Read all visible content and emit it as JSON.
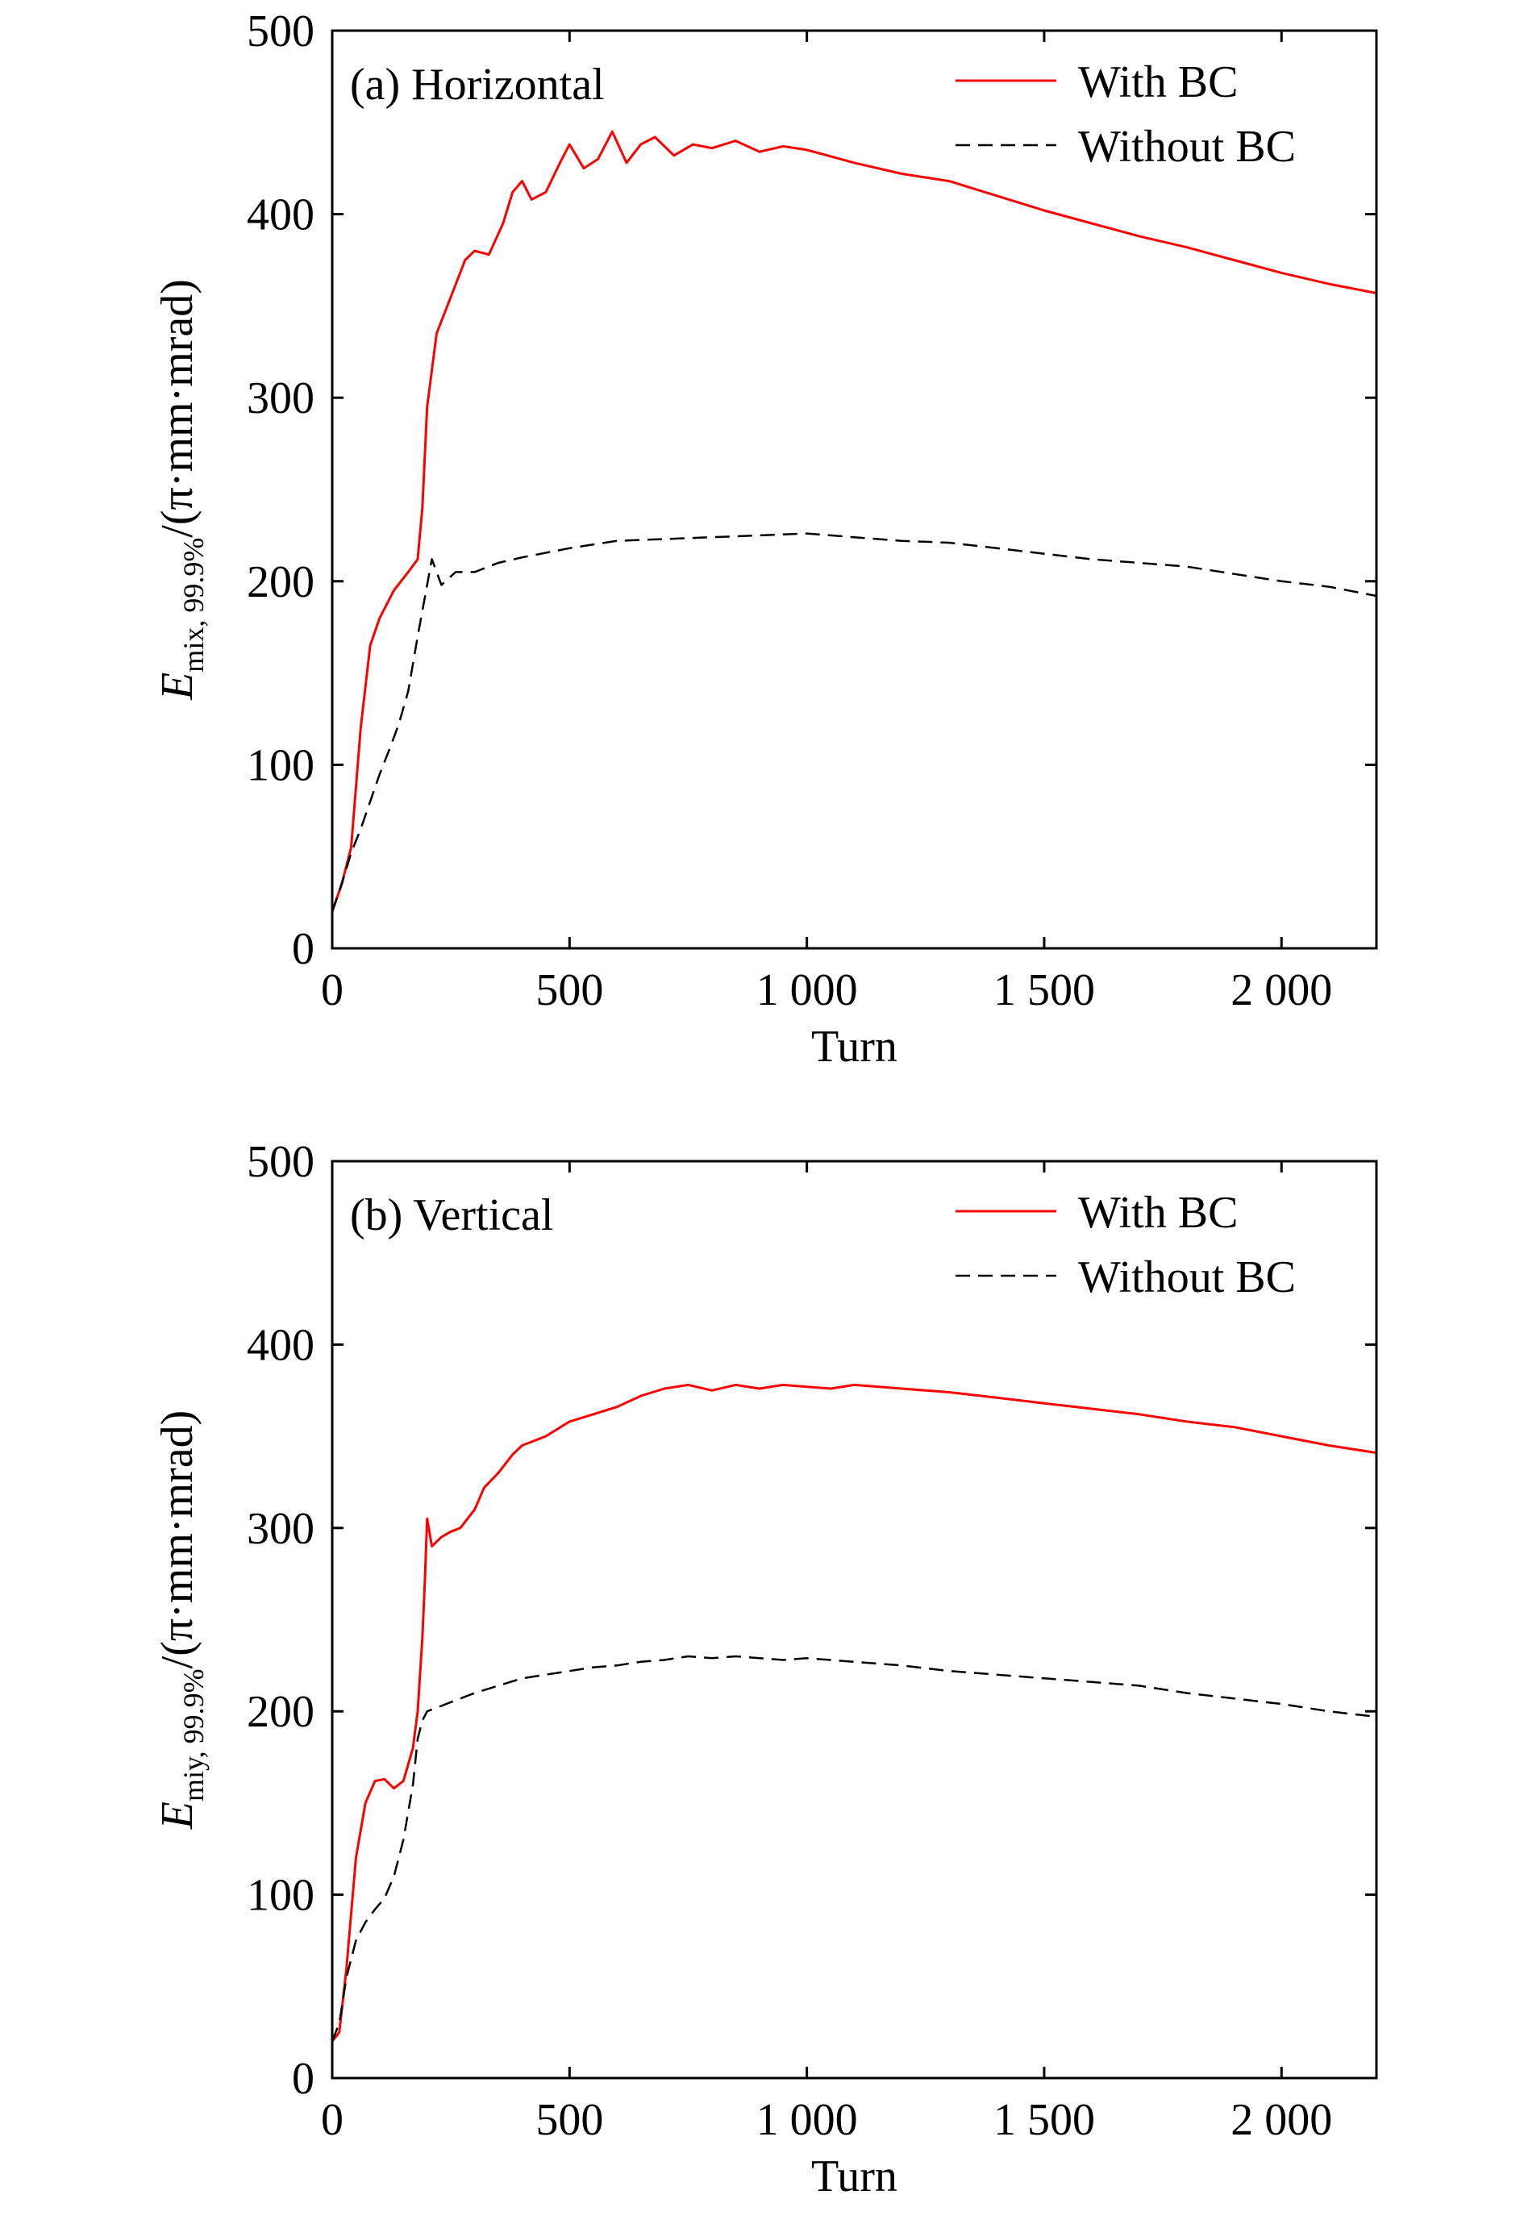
{
  "chart_data": [
    {
      "type": "line",
      "annotation": "(a) Horizontal",
      "xlabel": "Turn",
      "ylabel": {
        "symbol": "E",
        "subscript": "mix, 99.9%",
        "unit": "/(π·mm·mrad)"
      },
      "xlim": [
        0,
        2200
      ],
      "ylim": [
        0,
        500
      ],
      "x_ticks": [
        0,
        500,
        1000,
        1500,
        2000
      ],
      "x_tick_labels": [
        "0",
        "500",
        "1 000",
        "1 500",
        "2 000"
      ],
      "y_ticks": [
        0,
        100,
        200,
        300,
        400,
        500
      ],
      "y_tick_labels": [
        "0",
        "100",
        "200",
        "300",
        "400",
        "500"
      ],
      "grid": false,
      "legend_position": "top-right",
      "series": [
        {
          "name": "With BC",
          "color": "#ff0000",
          "style": "solid",
          "x": [
            0,
            20,
            40,
            60,
            80,
            100,
            130,
            160,
            180,
            190,
            200,
            220,
            250,
            280,
            300,
            330,
            360,
            380,
            400,
            420,
            450,
            480,
            500,
            530,
            560,
            590,
            620,
            650,
            680,
            720,
            760,
            800,
            850,
            900,
            950,
            1000,
            1100,
            1200,
            1300,
            1400,
            1500,
            1600,
            1700,
            1800,
            1900,
            2000,
            2100,
            2200
          ],
          "y": [
            20,
            35,
            55,
            120,
            165,
            180,
            195,
            205,
            212,
            240,
            295,
            335,
            355,
            375,
            380,
            378,
            395,
            412,
            418,
            408,
            412,
            428,
            438,
            425,
            430,
            445,
            428,
            438,
            442,
            432,
            438,
            436,
            440,
            434,
            437,
            435,
            428,
            422,
            418,
            410,
            402,
            395,
            388,
            382,
            375,
            368,
            362,
            357
          ]
        },
        {
          "name": "Without BC",
          "color": "#000000",
          "style": "dashed",
          "x": [
            0,
            20,
            40,
            60,
            80,
            100,
            120,
            140,
            160,
            180,
            200,
            210,
            220,
            230,
            260,
            300,
            350,
            400,
            500,
            600,
            700,
            800,
            900,
            1000,
            1100,
            1200,
            1300,
            1400,
            1500,
            1600,
            1700,
            1800,
            1900,
            2000,
            2100,
            2200
          ],
          "y": [
            20,
            35,
            52,
            65,
            80,
            95,
            108,
            122,
            140,
            170,
            198,
            212,
            205,
            198,
            205,
            205,
            210,
            213,
            218,
            222,
            223,
            224,
            225,
            226,
            224,
            222,
            221,
            218,
            215,
            212,
            210,
            208,
            204,
            200,
            197,
            192
          ]
        }
      ]
    },
    {
      "type": "line",
      "annotation": "(b) Vertical",
      "xlabel": "Turn",
      "ylabel": {
        "symbol": "E",
        "subscript": "miy, 99.9%",
        "unit": "/(π·mm·mrad)"
      },
      "xlim": [
        0,
        2200
      ],
      "ylim": [
        0,
        500
      ],
      "x_ticks": [
        0,
        500,
        1000,
        1500,
        2000
      ],
      "x_tick_labels": [
        "0",
        "500",
        "1 000",
        "1 500",
        "2 000"
      ],
      "y_ticks": [
        0,
        100,
        200,
        300,
        400,
        500
      ],
      "y_tick_labels": [
        "0",
        "100",
        "200",
        "300",
        "400",
        "500"
      ],
      "grid": false,
      "legend_position": "top-right",
      "series": [
        {
          "name": "With BC",
          "color": "#ff0000",
          "style": "solid",
          "x": [
            0,
            15,
            30,
            50,
            70,
            90,
            110,
            130,
            150,
            170,
            180,
            190,
            195,
            200,
            210,
            230,
            250,
            270,
            300,
            320,
            350,
            380,
            400,
            450,
            500,
            550,
            600,
            650,
            700,
            750,
            800,
            850,
            900,
            950,
            1000,
            1050,
            1100,
            1200,
            1300,
            1400,
            1500,
            1600,
            1700,
            1800,
            1900,
            2000,
            2100,
            2200
          ],
          "y": [
            20,
            25,
            60,
            120,
            150,
            162,
            163,
            158,
            162,
            180,
            200,
            240,
            270,
            305,
            290,
            295,
            298,
            300,
            310,
            322,
            330,
            340,
            345,
            350,
            358,
            362,
            366,
            372,
            376,
            378,
            375,
            378,
            376,
            378,
            377,
            376,
            378,
            376,
            374,
            371,
            368,
            365,
            362,
            358,
            355,
            350,
            345,
            341
          ]
        },
        {
          "name": "Without BC",
          "color": "#000000",
          "style": "dashed",
          "x": [
            0,
            15,
            30,
            50,
            70,
            90,
            110,
            130,
            150,
            170,
            180,
            190,
            200,
            220,
            250,
            300,
            350,
            400,
            450,
            500,
            550,
            600,
            650,
            700,
            750,
            800,
            850,
            900,
            950,
            1000,
            1050,
            1100,
            1150,
            1200,
            1300,
            1400,
            1500,
            1600,
            1700,
            1800,
            1900,
            2000,
            2100,
            2200
          ],
          "y": [
            20,
            30,
            55,
            75,
            85,
            92,
            98,
            110,
            130,
            160,
            185,
            195,
            200,
            202,
            205,
            210,
            214,
            218,
            220,
            222,
            224,
            225,
            227,
            228,
            230,
            229,
            230,
            229,
            228,
            229,
            228,
            227,
            226,
            225,
            222,
            220,
            218,
            216,
            214,
            210,
            207,
            204,
            200,
            197
          ]
        }
      ]
    }
  ]
}
